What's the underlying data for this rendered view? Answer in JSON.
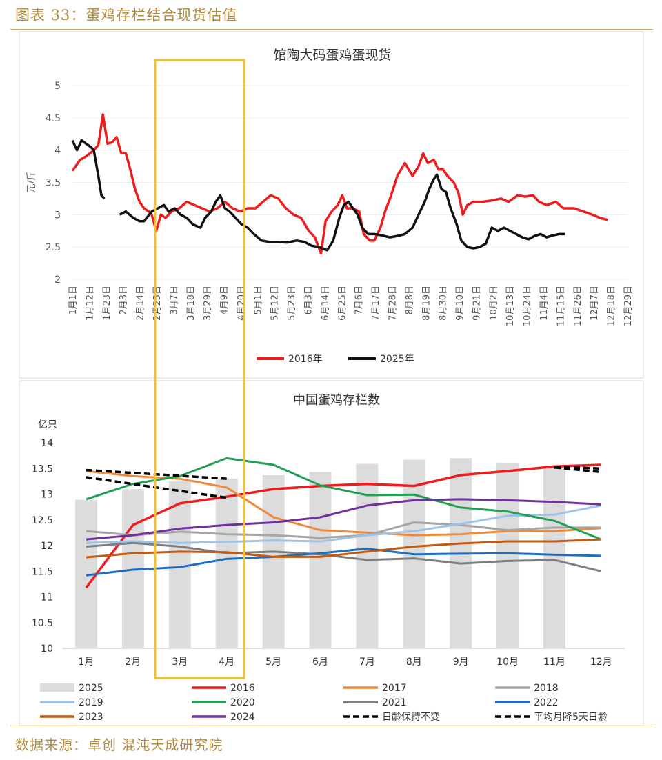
{
  "figure": {
    "title": "图表 33：蛋鸡存栏结合现货估值",
    "source": "数据来源：卓创 混沌天成研究院",
    "highlight_color": "#f2c12e"
  },
  "chart_data": [
    {
      "type": "line",
      "title": "馆陶大码蛋鸡蛋现货",
      "ylabel": "元/斤",
      "ylim": [
        2,
        5
      ],
      "yticks": [
        "2",
        "2.5",
        "3",
        "3.5",
        "4",
        "4.5",
        "5"
      ],
      "xlim": [
        1,
        365
      ],
      "xticks": [
        "1月1日",
        "1月12日",
        "1月23日",
        "2月3日",
        "2月14日",
        "2月25日",
        "3月7日",
        "3月18日",
        "3月29日",
        "4月9日",
        "4月20日",
        "5月1日",
        "5月12日",
        "5月23日",
        "6月3日",
        "6月14日",
        "6月25日",
        "7月6日",
        "7月17日",
        "7月28日",
        "8月8日",
        "8月19日",
        "8月30日",
        "9月10日",
        "9月21日",
        "10月2日",
        "10月13日",
        "10月24日",
        "11月4日",
        "11月15日",
        "11月26日",
        "12月7日",
        "12月18日",
        "12月29日"
      ],
      "legend_position": "bottom",
      "series": [
        {
          "name": "2016年",
          "color": "#ee1c1c",
          "points": [
            [
              1,
              3.68
            ],
            [
              6,
              3.85
            ],
            [
              11,
              3.92
            ],
            [
              15,
              4.0
            ],
            [
              18,
              4.08
            ],
            [
              21,
              4.55
            ],
            [
              24,
              4.1
            ],
            [
              27,
              4.12
            ],
            [
              30,
              4.2
            ],
            [
              33,
              3.95
            ],
            [
              36,
              3.95
            ],
            [
              39,
              3.7
            ],
            [
              42,
              3.4
            ],
            [
              45,
              3.2
            ],
            [
              48,
              3.1
            ],
            [
              51,
              3.05
            ],
            [
              53,
              3.0
            ],
            [
              56,
              2.75
            ],
            [
              59,
              3.0
            ],
            [
              62,
              2.95
            ],
            [
              66,
              3.05
            ],
            [
              71,
              3.1
            ],
            [
              76,
              3.2
            ],
            [
              81,
              3.15
            ],
            [
              86,
              3.1
            ],
            [
              91,
              3.05
            ],
            [
              96,
              3.1
            ],
            [
              101,
              3.2
            ],
            [
              106,
              3.1
            ],
            [
              111,
              3.05
            ],
            [
              116,
              3.1
            ],
            [
              121,
              3.1
            ],
            [
              126,
              3.2
            ],
            [
              131,
              3.3
            ],
            [
              136,
              3.25
            ],
            [
              141,
              3.1
            ],
            [
              146,
              3.0
            ],
            [
              151,
              2.95
            ],
            [
              156,
              2.75
            ],
            [
              160,
              2.65
            ],
            [
              164,
              2.4
            ],
            [
              167,
              2.9
            ],
            [
              171,
              3.05
            ],
            [
              175,
              3.15
            ],
            [
              178,
              3.3
            ],
            [
              181,
              3.1
            ],
            [
              185,
              3.1
            ],
            [
              189,
              3.05
            ],
            [
              192,
              2.7
            ],
            [
              196,
              2.6
            ],
            [
              199,
              2.6
            ],
            [
              203,
              2.8
            ],
            [
              206,
              3.05
            ],
            [
              210,
              3.3
            ],
            [
              214,
              3.6
            ],
            [
              219,
              3.8
            ],
            [
              224,
              3.6
            ],
            [
              228,
              3.75
            ],
            [
              231,
              3.95
            ],
            [
              234,
              3.8
            ],
            [
              238,
              3.85
            ],
            [
              241,
              3.7
            ],
            [
              244,
              3.7
            ],
            [
              247,
              3.6
            ],
            [
              251,
              3.5
            ],
            [
              254,
              3.35
            ],
            [
              257,
              3.0
            ],
            [
              260,
              3.15
            ],
            [
              264,
              3.2
            ],
            [
              270,
              3.2
            ],
            [
              276,
              3.22
            ],
            [
              282,
              3.25
            ],
            [
              287,
              3.2
            ],
            [
              293,
              3.3
            ],
            [
              298,
              3.28
            ],
            [
              303,
              3.3
            ],
            [
              307,
              3.2
            ],
            [
              312,
              3.15
            ],
            [
              318,
              3.2
            ],
            [
              323,
              3.1
            ],
            [
              330,
              3.1
            ],
            [
              336,
              3.05
            ],
            [
              342,
              3.0
            ],
            [
              347,
              2.95
            ],
            [
              352,
              2.92
            ]
          ]
        },
        {
          "name": "2025年",
          "color": "#111111",
          "segments": [
            [
              [
                1,
                4.15
              ],
              [
                4,
                4.0
              ],
              [
                7,
                4.15
              ],
              [
                10,
                4.1
              ],
              [
                13,
                4.05
              ],
              [
                15,
                4.0
              ],
              [
                18,
                3.6
              ],
              [
                20,
                3.3
              ],
              [
                22,
                3.25
              ]
            ],
            [
              [
                32,
                3.0
              ],
              [
                36,
                3.05
              ],
              [
                41,
                2.95
              ],
              [
                45,
                2.9
              ],
              [
                48,
                2.9
              ],
              [
                53,
                3.05
              ],
              [
                57,
                3.1
              ],
              [
                61,
                3.15
              ],
              [
                64,
                3.05
              ],
              [
                68,
                3.1
              ],
              [
                72,
                3.0
              ],
              [
                76,
                2.95
              ],
              [
                80,
                2.85
              ],
              [
                85,
                2.8
              ],
              [
                88,
                2.95
              ],
              [
                92,
                3.05
              ],
              [
                95,
                3.2
              ],
              [
                98,
                3.3
              ],
              [
                101,
                3.1
              ],
              [
                104,
                3.05
              ],
              [
                108,
                2.95
              ],
              [
                112,
                2.85
              ],
              [
                116,
                2.8
              ],
              [
                120,
                2.7
              ],
              [
                125,
                2.6
              ],
              [
                130,
                2.58
              ],
              [
                136,
                2.58
              ],
              [
                142,
                2.57
              ],
              [
                148,
                2.6
              ],
              [
                153,
                2.58
              ],
              [
                158,
                2.52
              ],
              [
                163,
                2.5
              ],
              [
                168,
                2.45
              ],
              [
                172,
                2.6
              ],
              [
                176,
                2.95
              ],
              [
                179,
                3.15
              ],
              [
                182,
                3.2
              ],
              [
                185,
                3.1
              ],
              [
                188,
                3.0
              ],
              [
                191,
                2.8
              ],
              [
                195,
                2.7
              ],
              [
                199,
                2.7
              ],
              [
                204,
                2.68
              ],
              [
                209,
                2.65
              ],
              [
                214,
                2.67
              ],
              [
                219,
                2.7
              ],
              [
                224,
                2.8
              ],
              [
                228,
                3.0
              ],
              [
                232,
                3.2
              ],
              [
                235,
                3.4
              ],
              [
                238,
                3.55
              ],
              [
                240,
                3.62
              ],
              [
                243,
                3.4
              ],
              [
                246,
                3.35
              ],
              [
                249,
                3.1
              ],
              [
                253,
                2.85
              ],
              [
                256,
                2.6
              ],
              [
                260,
                2.5
              ],
              [
                264,
                2.48
              ],
              [
                268,
                2.5
              ],
              [
                272,
                2.55
              ],
              [
                276,
                2.8
              ],
              [
                280,
                2.75
              ],
              [
                284,
                2.8
              ],
              [
                288,
                2.75
              ],
              [
                292,
                2.7
              ],
              [
                296,
                2.65
              ],
              [
                300,
                2.62
              ],
              [
                304,
                2.67
              ],
              [
                308,
                2.7
              ],
              [
                312,
                2.65
              ],
              [
                316,
                2.68
              ],
              [
                320,
                2.7
              ],
              [
                324,
                2.7
              ]
            ]
          ]
        }
      ]
    },
    {
      "type": "bar+line",
      "title": "中国蛋鸡存栏数",
      "ylabel": "亿只",
      "ylim": [
        10,
        14
      ],
      "yticks": [
        "10",
        "10.5",
        "11",
        "11.5",
        "12",
        "12.5",
        "13",
        "13.5",
        "14"
      ],
      "categories": [
        "1月",
        "2月",
        "3月",
        "4月",
        "5月",
        "6月",
        "7月",
        "8月",
        "9月",
        "10月",
        "11月",
        "12月"
      ],
      "legend_position": "bottom",
      "bars": {
        "name": "2025",
        "color": "#dcdcdc",
        "values": [
          12.89,
          13.1,
          13.25,
          13.3,
          13.37,
          13.43,
          13.59,
          13.67,
          13.7,
          13.61,
          13.54,
          null
        ]
      },
      "series": [
        {
          "name": "2016",
          "color": "#ee1c1c",
          "width": 3.5,
          "values": [
            11.18,
            12.4,
            12.82,
            12.95,
            13.1,
            13.16,
            13.2,
            13.16,
            13.37,
            13.45,
            13.54,
            13.57
          ]
        },
        {
          "name": "2017",
          "color": "#ee8a3c",
          "width": 3,
          "values": [
            13.45,
            13.35,
            13.3,
            13.13,
            12.55,
            12.3,
            12.25,
            12.2,
            12.22,
            12.28,
            12.28,
            12.34
          ]
        },
        {
          "name": "2018",
          "color": "#a6a6a6",
          "width": 3,
          "values": [
            12.28,
            12.2,
            12.27,
            12.22,
            12.2,
            12.15,
            12.2,
            12.45,
            12.4,
            12.3,
            12.35,
            12.35
          ]
        },
        {
          "name": "2019",
          "color": "#9dc3e6",
          "width": 3,
          "values": [
            12.05,
            12.08,
            12.05,
            12.07,
            12.1,
            12.08,
            12.2,
            12.28,
            12.42,
            12.58,
            12.6,
            12.78
          ]
        },
        {
          "name": "2020",
          "color": "#21a055",
          "width": 3,
          "values": [
            12.9,
            13.2,
            13.35,
            13.7,
            13.57,
            13.17,
            12.98,
            12.99,
            12.74,
            12.66,
            12.48,
            12.12
          ]
        },
        {
          "name": "2021",
          "color": "#7f7f7f",
          "width": 3,
          "values": [
            11.98,
            12.05,
            11.98,
            11.85,
            11.88,
            11.83,
            11.72,
            11.75,
            11.65,
            11.7,
            11.72,
            11.5
          ]
        },
        {
          "name": "2022",
          "color": "#1f6fc0",
          "width": 3,
          "values": [
            11.42,
            11.53,
            11.58,
            11.74,
            11.78,
            11.85,
            11.94,
            11.83,
            11.84,
            11.85,
            11.82,
            11.8
          ]
        },
        {
          "name": "2023",
          "color": "#c55a11",
          "width": 3,
          "values": [
            11.77,
            11.85,
            11.88,
            11.87,
            11.78,
            11.78,
            11.88,
            11.98,
            12.04,
            12.08,
            12.08,
            12.12
          ]
        },
        {
          "name": "2024",
          "color": "#7030a0",
          "width": 3,
          "values": [
            12.12,
            12.2,
            12.33,
            12.4,
            12.45,
            12.55,
            12.78,
            12.88,
            12.9,
            12.88,
            12.85,
            12.8
          ]
        }
      ],
      "dashed": [
        {
          "name": "日龄保持不变",
          "color": "#000000",
          "segments": [
            [
              [
                1,
                13.47
              ],
              [
                4,
                13.3
              ]
            ],
            [
              [
                11,
                13.53
              ],
              [
                12,
                13.5
              ]
            ]
          ]
        },
        {
          "name": "平均月降5天日龄",
          "color": "#000000",
          "segments": [
            [
              [
                1,
                13.33
              ],
              [
                4,
                12.93
              ]
            ],
            [
              [
                11,
                13.52
              ],
              [
                12,
                13.43
              ]
            ]
          ]
        }
      ],
      "legend": [
        "2025",
        "2016",
        "2017",
        "2018",
        "2019",
        "2020",
        "2021",
        "2022",
        "2023",
        "2024",
        "日龄保持不变",
        "平均月降5天日龄"
      ]
    }
  ]
}
